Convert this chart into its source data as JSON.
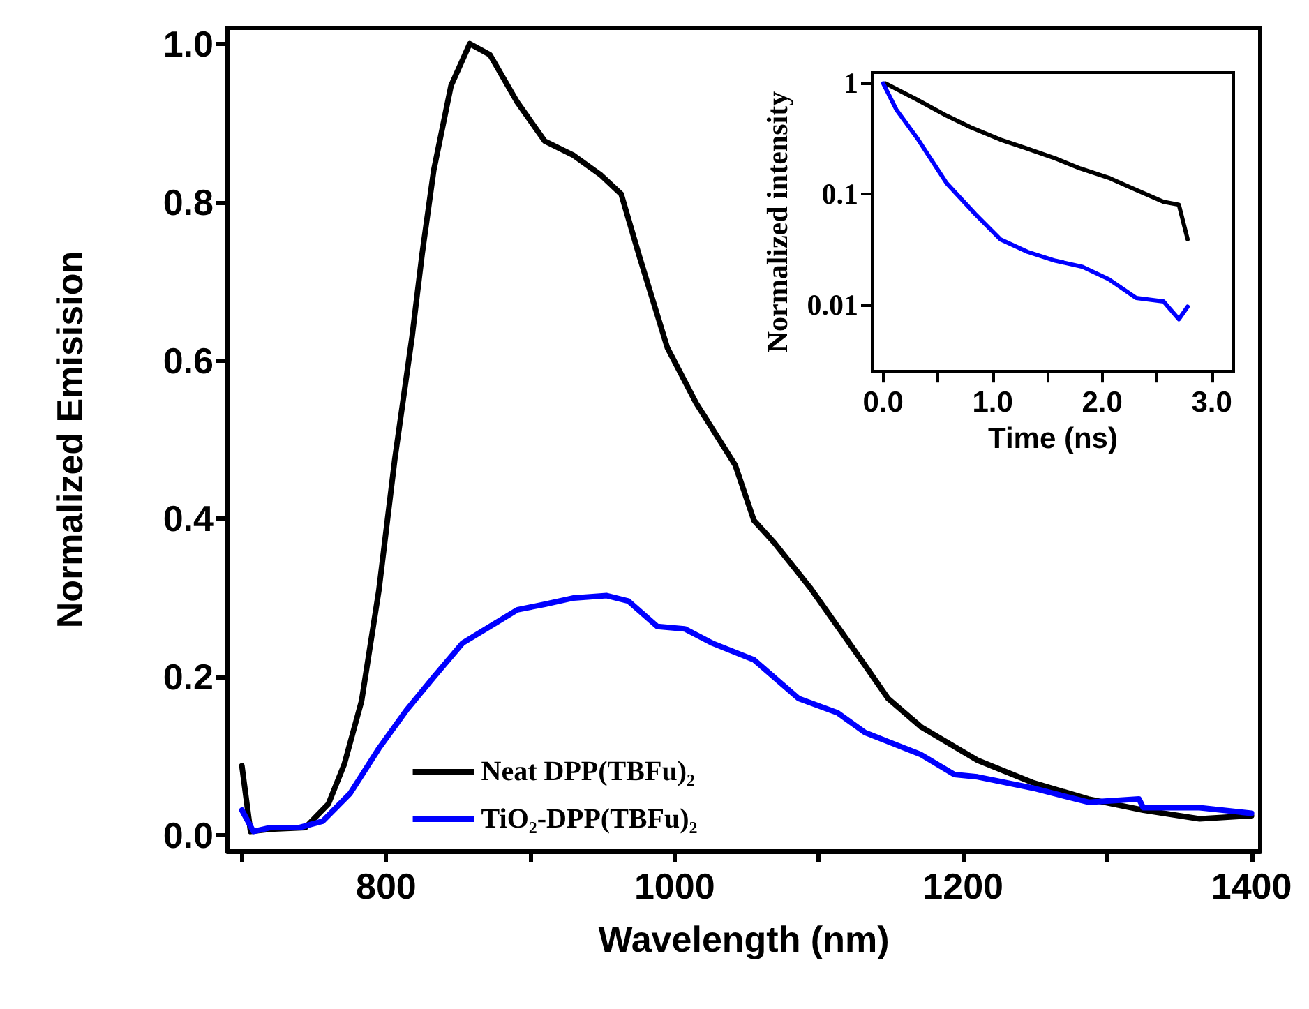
{
  "chart_data": [
    {
      "type": "line",
      "xlabel": "Wavelength (nm)",
      "ylabel": "Normalized Emisision",
      "xlim": [
        690,
        1406
      ],
      "ylim": [
        -0.02,
        1.02
      ],
      "xticks": [
        {
          "value": 700,
          "label": null
        },
        800,
        {
          "value": 900,
          "label": null
        },
        1000,
        {
          "value": 1100,
          "label": null
        },
        1200,
        {
          "value": 1300,
          "label": null
        },
        1400
      ],
      "yticks": [
        {
          "value": 0,
          "label": "0.0"
        },
        0.2,
        0.4,
        0.6,
        0.8,
        {
          "value": 1,
          "label": "1.0"
        }
      ],
      "legend": "bottom",
      "grid": false,
      "line_style": "solid",
      "marker": "none",
      "series": [
        {
          "name": "Neat DPP(TBFu)₂",
          "color": "#000000",
          "x": [
            700,
            706,
            720,
            744,
            760,
            771,
            783,
            795,
            806,
            818,
            825,
            833,
            845,
            858,
            872,
            891,
            910,
            930,
            949,
            963,
            976,
            995,
            1015,
            1042,
            1055,
            1069,
            1094,
            1132,
            1148,
            1171,
            1210,
            1248,
            1287,
            1325,
            1364,
            1400
          ],
          "values": [
            0.088,
            0.005,
            0.008,
            0.01,
            0.04,
            0.09,
            0.17,
            0.31,
            0.475,
            0.63,
            0.735,
            0.84,
            0.947,
            1.0,
            0.986,
            0.926,
            0.877,
            0.859,
            0.834,
            0.81,
            0.729,
            0.616,
            0.546,
            0.468,
            0.398,
            0.37,
            0.313,
            0.215,
            0.173,
            0.137,
            0.095,
            0.067,
            0.046,
            0.032,
            0.021,
            0.025
          ]
        },
        {
          "name": "TiO₂-DPP(TBFu)₂",
          "color": "#0000ff",
          "x": [
            700,
            708,
            720,
            740,
            756,
            775,
            795,
            814,
            833,
            853,
            872,
            891,
            910,
            930,
            953,
            968,
            988,
            1007,
            1026,
            1055,
            1086,
            1113,
            1132,
            1171,
            1194,
            1210,
            1248,
            1287,
            1322,
            1325,
            1364,
            1400
          ],
          "values": [
            0.032,
            0.005,
            0.01,
            0.01,
            0.018,
            0.053,
            0.11,
            0.158,
            0.2,
            0.243,
            0.264,
            0.285,
            0.292,
            0.3,
            0.303,
            0.296,
            0.264,
            0.261,
            0.243,
            0.222,
            0.173,
            0.155,
            0.13,
            0.102,
            0.077,
            0.074,
            0.06,
            0.042,
            0.046,
            0.035,
            0.035,
            0.028
          ]
        }
      ]
    },
    {
      "type": "line",
      "xlabel": "Time (ns)",
      "ylabel": "Normalized intensity",
      "log": "y",
      "xlim": [
        -0.1,
        3.2
      ],
      "ylim": [
        0.0025,
        1.25
      ],
      "xticks": [
        {
          "value": 0,
          "label": "0.0"
        },
        {
          "value": 0.5,
          "label": null
        },
        {
          "value": 1,
          "label": "1.0"
        },
        {
          "value": 1.5,
          "label": null
        },
        {
          "value": 2,
          "label": "2.0"
        },
        {
          "value": 2.5,
          "label": null
        },
        {
          "value": 3,
          "label": "3.0"
        }
      ],
      "yticks": [
        0.01,
        0.1,
        1
      ],
      "legend": false,
      "grid": false,
      "line_style": "solid",
      "marker": "none",
      "series": [
        {
          "color": "#000000",
          "x": [
            0.02,
            0.3,
            0.58,
            0.8,
            1.07,
            1.3,
            1.57,
            1.8,
            2.06,
            2.3,
            2.56,
            2.7,
            2.78
          ],
          "values": [
            1.0,
            0.72,
            0.51,
            0.4,
            0.31,
            0.26,
            0.21,
            0.17,
            0.14,
            0.11,
            0.085,
            0.08,
            0.039
          ]
        },
        {
          "color": "#0000ff",
          "x": [
            0.0,
            0.12,
            0.32,
            0.58,
            0.84,
            1.07,
            1.32,
            1.57,
            1.82,
            2.06,
            2.31,
            2.56,
            2.7,
            2.78
          ],
          "values": [
            1.0,
            0.58,
            0.31,
            0.125,
            0.066,
            0.039,
            0.03,
            0.025,
            0.022,
            0.017,
            0.0115,
            0.0107,
            0.0074,
            0.0096
          ]
        }
      ]
    }
  ]
}
